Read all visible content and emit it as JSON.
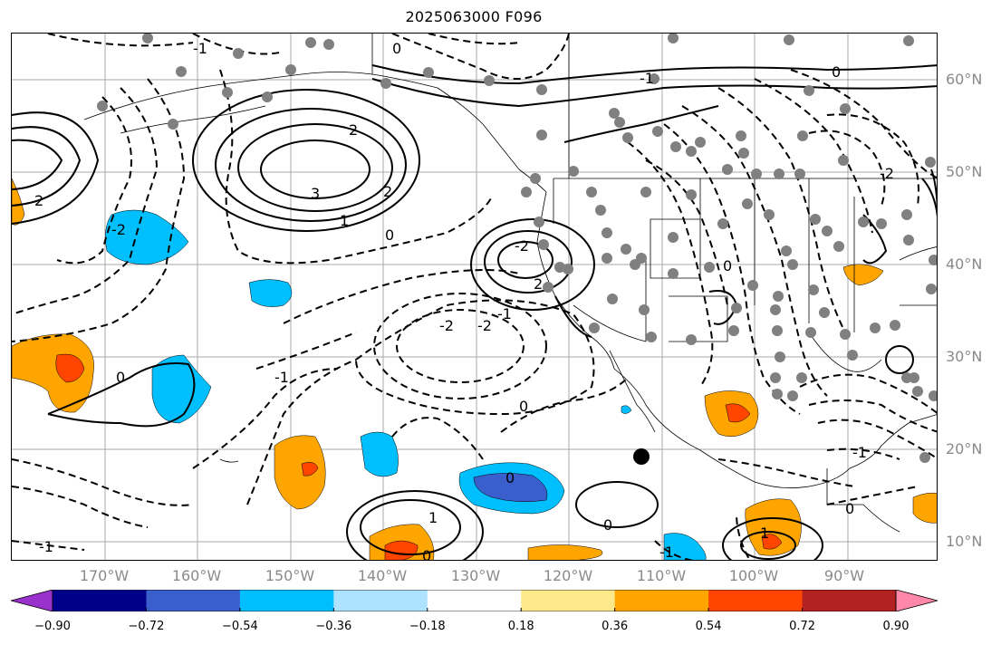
{
  "title": "2025063000 F096",
  "map": {
    "lat_labels": [
      "60°N",
      "50°N",
      "40°N",
      "30°N",
      "20°N",
      "10°N"
    ],
    "lon_labels": [
      "170°W",
      "160°W",
      "150°W",
      "140°W",
      "130°W",
      "120°W",
      "110°W",
      "100°W",
      "90°W"
    ],
    "contour_labels": [
      "-1",
      "0",
      "2",
      "3",
      "2",
      "1",
      "0",
      "-2",
      "2",
      "-2",
      "-1",
      "-1",
      "0",
      "-2",
      "0",
      "-1",
      "0",
      "1",
      "0",
      "0",
      "1",
      "-1",
      "-1",
      "0",
      "-2",
      "2",
      "0",
      "-1",
      "0",
      "-2"
    ],
    "colors": {
      "positive_light": "#fde88a",
      "positive_mid": "#ffa500",
      "positive_strong": "#ff4500",
      "negative_light": "#aee3ff",
      "negative_mid": "#00bfff",
      "negative_strong": "#3a5fcd",
      "station_dot": "#808080"
    }
  },
  "colorbar": {
    "ticks": [
      "−0.90",
      "−0.72",
      "−0.54",
      "−0.36",
      "−0.18",
      "0.18",
      "0.36",
      "0.54",
      "0.72",
      "0.90"
    ],
    "colors": [
      "#9932cc",
      "#00008b",
      "#3a5fcd",
      "#00bfff",
      "#aee3ff",
      "#ffffff",
      "#fde88a",
      "#ffa500",
      "#ff4500",
      "#b22222",
      "#ff88aa"
    ]
  }
}
